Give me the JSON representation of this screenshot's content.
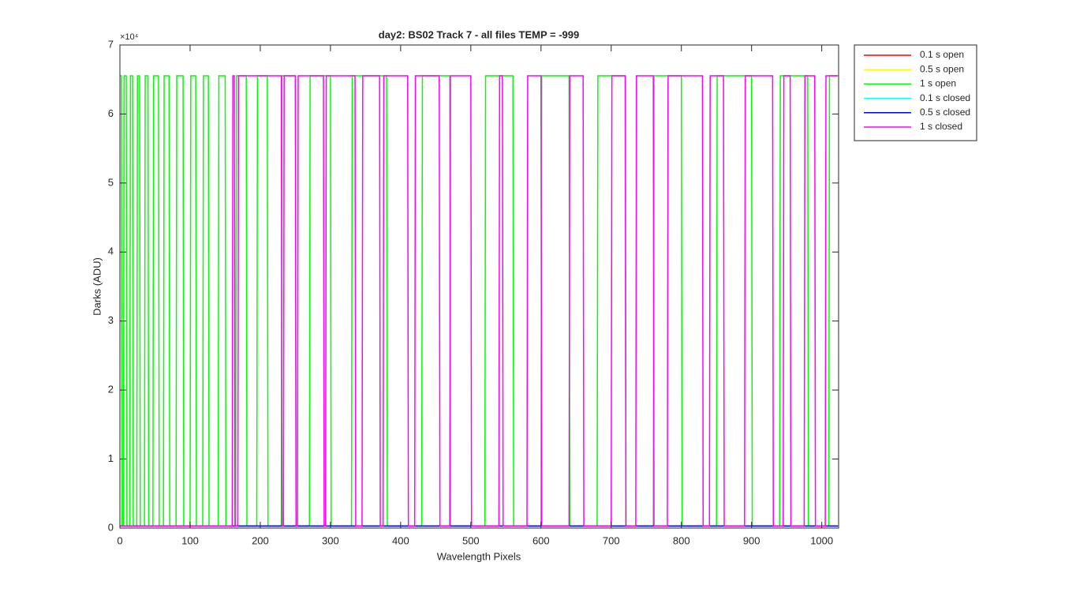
{
  "chart_data": {
    "type": "line",
    "title": "day2: BS02  Track 7 - all files TEMP = -999",
    "x_label": "Wavelength Pixels",
    "y_label": "Darks (ADU)",
    "y_exponent_label": "×10⁴",
    "xlim": [
      0,
      1024
    ],
    "xticks": [
      0,
      100,
      200,
      300,
      400,
      500,
      600,
      700,
      800,
      900,
      1000
    ],
    "ylim": [
      0,
      70000
    ],
    "yticks": [
      {
        "value": 0,
        "label": "0"
      },
      {
        "value": 10000,
        "label": "1"
      },
      {
        "value": 20000,
        "label": "2"
      },
      {
        "value": 30000,
        "label": "3"
      },
      {
        "value": 40000,
        "label": "4"
      },
      {
        "value": 50000,
        "label": "5"
      },
      {
        "value": 60000,
        "label": "6"
      },
      {
        "value": 70000,
        "label": "7"
      }
    ],
    "grid": false,
    "legend_position": "outside-right",
    "series": [
      {
        "name": "0.1 s open",
        "color": "#ff0000",
        "x": [
          0,
          1023
        ],
        "values": [
          300,
          300
        ]
      },
      {
        "name": "0.5 s open",
        "color": "#ffff00",
        "x": [
          0,
          1023
        ],
        "values": [
          300,
          300
        ]
      },
      {
        "name": "1 s open",
        "color": "#00ff00",
        "x": [
          0,
          2,
          3,
          5,
          6,
          9,
          10,
          14,
          15,
          18,
          19,
          24,
          25,
          28,
          29,
          35,
          36,
          40,
          41,
          47,
          48,
          55,
          56,
          62,
          63,
          70,
          71,
          80,
          81,
          90,
          91,
          100,
          101,
          108,
          109,
          118,
          119,
          126,
          127,
          140,
          141,
          150,
          151,
          165,
          166,
          180,
          181,
          195,
          196,
          210,
          211,
          230,
          231,
          250,
          251,
          270,
          271,
          300,
          301,
          330,
          331,
          380,
          381,
          430,
          431,
          470,
          471,
          520,
          521,
          560,
          561,
          600,
          601,
          640,
          641,
          680,
          681,
          720,
          721,
          760,
          761,
          800,
          801,
          850,
          851,
          900,
          901,
          940,
          941,
          980,
          981,
          1010,
          1011,
          1023
        ],
        "values": [
          65535,
          65535,
          300,
          300,
          65535,
          65535,
          300,
          300,
          65535,
          65535,
          300,
          300,
          65535,
          65535,
          300,
          300,
          65535,
          65535,
          300,
          300,
          65535,
          65535,
          300,
          300,
          65535,
          65535,
          300,
          300,
          65535,
          65535,
          300,
          300,
          65535,
          65535,
          300,
          300,
          65535,
          65535,
          300,
          300,
          65535,
          65535,
          300,
          300,
          65535,
          65535,
          300,
          300,
          65535,
          65535,
          300,
          300,
          65535,
          65535,
          300,
          300,
          65535,
          65535,
          300,
          300,
          65535,
          65535,
          300,
          300,
          65535,
          65535,
          300,
          300,
          65535,
          65535,
          300,
          300,
          65535,
          65535,
          300,
          300,
          65535,
          65535,
          300,
          300,
          65535,
          65535,
          300,
          300,
          65535,
          65535,
          300,
          300,
          65535,
          65535,
          300,
          300,
          65535,
          65535
        ]
      },
      {
        "name": "0.1 s closed",
        "color": "#00ffff",
        "x": [
          0,
          1023
        ],
        "values": [
          300,
          300
        ]
      },
      {
        "name": "0.5 s closed",
        "color": "#0000ff",
        "x": [
          0,
          1023
        ],
        "values": [
          300,
          300
        ]
      },
      {
        "name": "1 s closed",
        "color": "#ff00ff",
        "x": [
          0,
          160,
          161,
          163,
          164,
          168,
          169,
          230,
          231,
          233,
          234,
          250,
          251,
          253,
          254,
          290,
          291,
          293,
          294,
          335,
          336,
          345,
          346,
          370,
          371,
          375,
          376,
          410,
          411,
          420,
          421,
          455,
          456,
          470,
          471,
          500,
          501,
          540,
          541,
          545,
          546,
          580,
          581,
          600,
          601,
          640,
          641,
          660,
          661,
          700,
          701,
          720,
          721,
          735,
          736,
          760,
          761,
          780,
          781,
          830,
          831,
          840,
          841,
          860,
          861,
          890,
          891,
          930,
          931,
          945,
          946,
          955,
          956,
          975,
          976,
          990,
          991,
          1005,
          1006,
          1023
        ],
        "values": [
          300,
          300,
          65535,
          65535,
          300,
          300,
          65535,
          65535,
          300,
          300,
          65535,
          65535,
          300,
          300,
          65535,
          65535,
          300,
          300,
          65535,
          65535,
          300,
          300,
          65535,
          65535,
          300,
          300,
          65535,
          65535,
          300,
          300,
          65535,
          65535,
          300,
          300,
          65535,
          65535,
          300,
          300,
          65535,
          65535,
          300,
          300,
          65535,
          65535,
          300,
          300,
          65535,
          65535,
          300,
          300,
          65535,
          65535,
          300,
          300,
          65535,
          65535,
          300,
          300,
          65535,
          65535,
          300,
          300,
          65535,
          65535,
          300,
          300,
          65535,
          65535,
          300,
          300,
          65535,
          65535,
          300,
          300,
          65535,
          65535,
          300,
          300,
          65535,
          65535
        ]
      }
    ]
  }
}
